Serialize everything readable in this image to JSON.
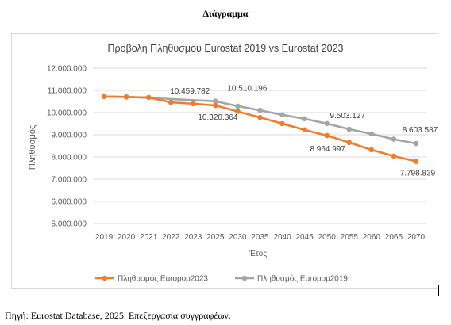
{
  "page": {
    "heading": "Διάγραμμα",
    "source": "Πηγή: Eurostat Database, 2025. Επεξεργασία συγγραφέων."
  },
  "chart_data": {
    "type": "line",
    "title": "Προβολή Πληθυσμού Eurostat 2019 vs Eurostat 2023",
    "xlabel": "Έτος",
    "ylabel": "Πληθυσμός",
    "ylim": [
      5000000,
      12000000
    ],
    "ytick_labels": [
      "5.000.000",
      "6.000.000",
      "7.000.000",
      "8.000.000",
      "9.000.000",
      "10.000.000",
      "11.000.000",
      "12.000.000"
    ],
    "categories": [
      "2019",
      "2020",
      "2021",
      "2022",
      "2023",
      "2025",
      "2030",
      "2035",
      "2040",
      "2045",
      "2050",
      "2055",
      "2060",
      "2065",
      "2070"
    ],
    "grid": true,
    "legend_position": "bottom",
    "series": [
      {
        "name": "Πληθυσμός Europop2023",
        "color": "#ED7D31",
        "values": [
          10720000,
          10700000,
          10680000,
          10459782,
          10400000,
          10320364,
          10050000,
          9780000,
          9500000,
          9220000,
          8964997,
          8650000,
          8320000,
          8040000,
          7798839
        ]
      },
      {
        "name": "Πληθυσμός Europop2019",
        "color": "#A5A5A5",
        "values": [
          10720000,
          10710000,
          null,
          null,
          null,
          10510196,
          10290000,
          10100000,
          9900000,
          9720000,
          9503127,
          9250000,
          9040000,
          8800000,
          8603587
        ]
      }
    ],
    "data_labels": [
      {
        "series": 0,
        "index": 3,
        "text": "10.459.782"
      },
      {
        "series": 0,
        "index": 5,
        "text": "10.320.364"
      },
      {
        "series": 1,
        "index": 5,
        "text": "10.510.196"
      },
      {
        "series": 0,
        "index": 10,
        "text": "8.964.997"
      },
      {
        "series": 1,
        "index": 10,
        "text": "9.503.127"
      },
      {
        "series": 1,
        "index": 14,
        "text": "8.603.587"
      },
      {
        "series": 0,
        "index": 14,
        "text": "7.798.839"
      }
    ]
  }
}
